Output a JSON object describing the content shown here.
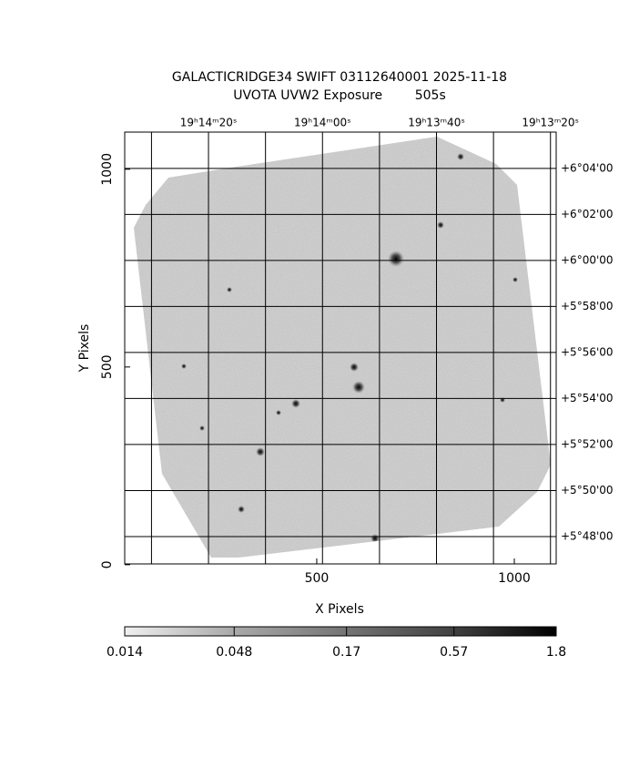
{
  "chart_data": {
    "type": "image",
    "title": "GALACTICRIDGE34 SWIFT 03112640001 2025-11-18",
    "subtitle": "UVOTA UVW2 Exposure        505s",
    "xlabel": "X Pixels",
    "ylabel": "Y Pixels",
    "xlim": [
      14,
      1106
    ],
    "ylim": [
      2,
      1094
    ],
    "xticks": [
      500,
      1000
    ],
    "yticks": [
      0,
      500,
      1000
    ],
    "x2lim": [
      874.7,
      799.0
    ],
    "x2ticks": [
      {
        "value": 860,
        "label": "19ʰ14ᵐ20ˢ"
      },
      {
        "value": 840,
        "label": "19ʰ14ᵐ00ˢ"
      },
      {
        "value": 820,
        "label": "19ʰ13ᵐ40ˢ"
      },
      {
        "value": 800,
        "label": "19ʰ13ᵐ20ˢ"
      }
    ],
    "x2minor": [
      870,
      850,
      830,
      810
    ],
    "y2lim": [
      346.81,
      365.58
    ],
    "y2ticks": [
      {
        "value": 364,
        "label": "+6°04'00"
      },
      {
        "value": 362,
        "label": "+6°02'00"
      },
      {
        "value": 360,
        "label": "+6°00'00"
      },
      {
        "value": 358,
        "label": "+5°58'00"
      },
      {
        "value": 356,
        "label": "+5°56'00"
      },
      {
        "value": 354,
        "label": "+5°54'00"
      },
      {
        "value": 352,
        "label": "+5°52'00"
      },
      {
        "value": 350,
        "label": "+5°50'00"
      },
      {
        "value": 348,
        "label": "+5°48'00"
      }
    ],
    "grid": true,
    "colorbar": {
      "lim": [
        0.014,
        1.8
      ],
      "ticks": [
        0.014,
        0.048,
        0.17,
        0.57,
        1.8
      ],
      "log": true
    }
  }
}
